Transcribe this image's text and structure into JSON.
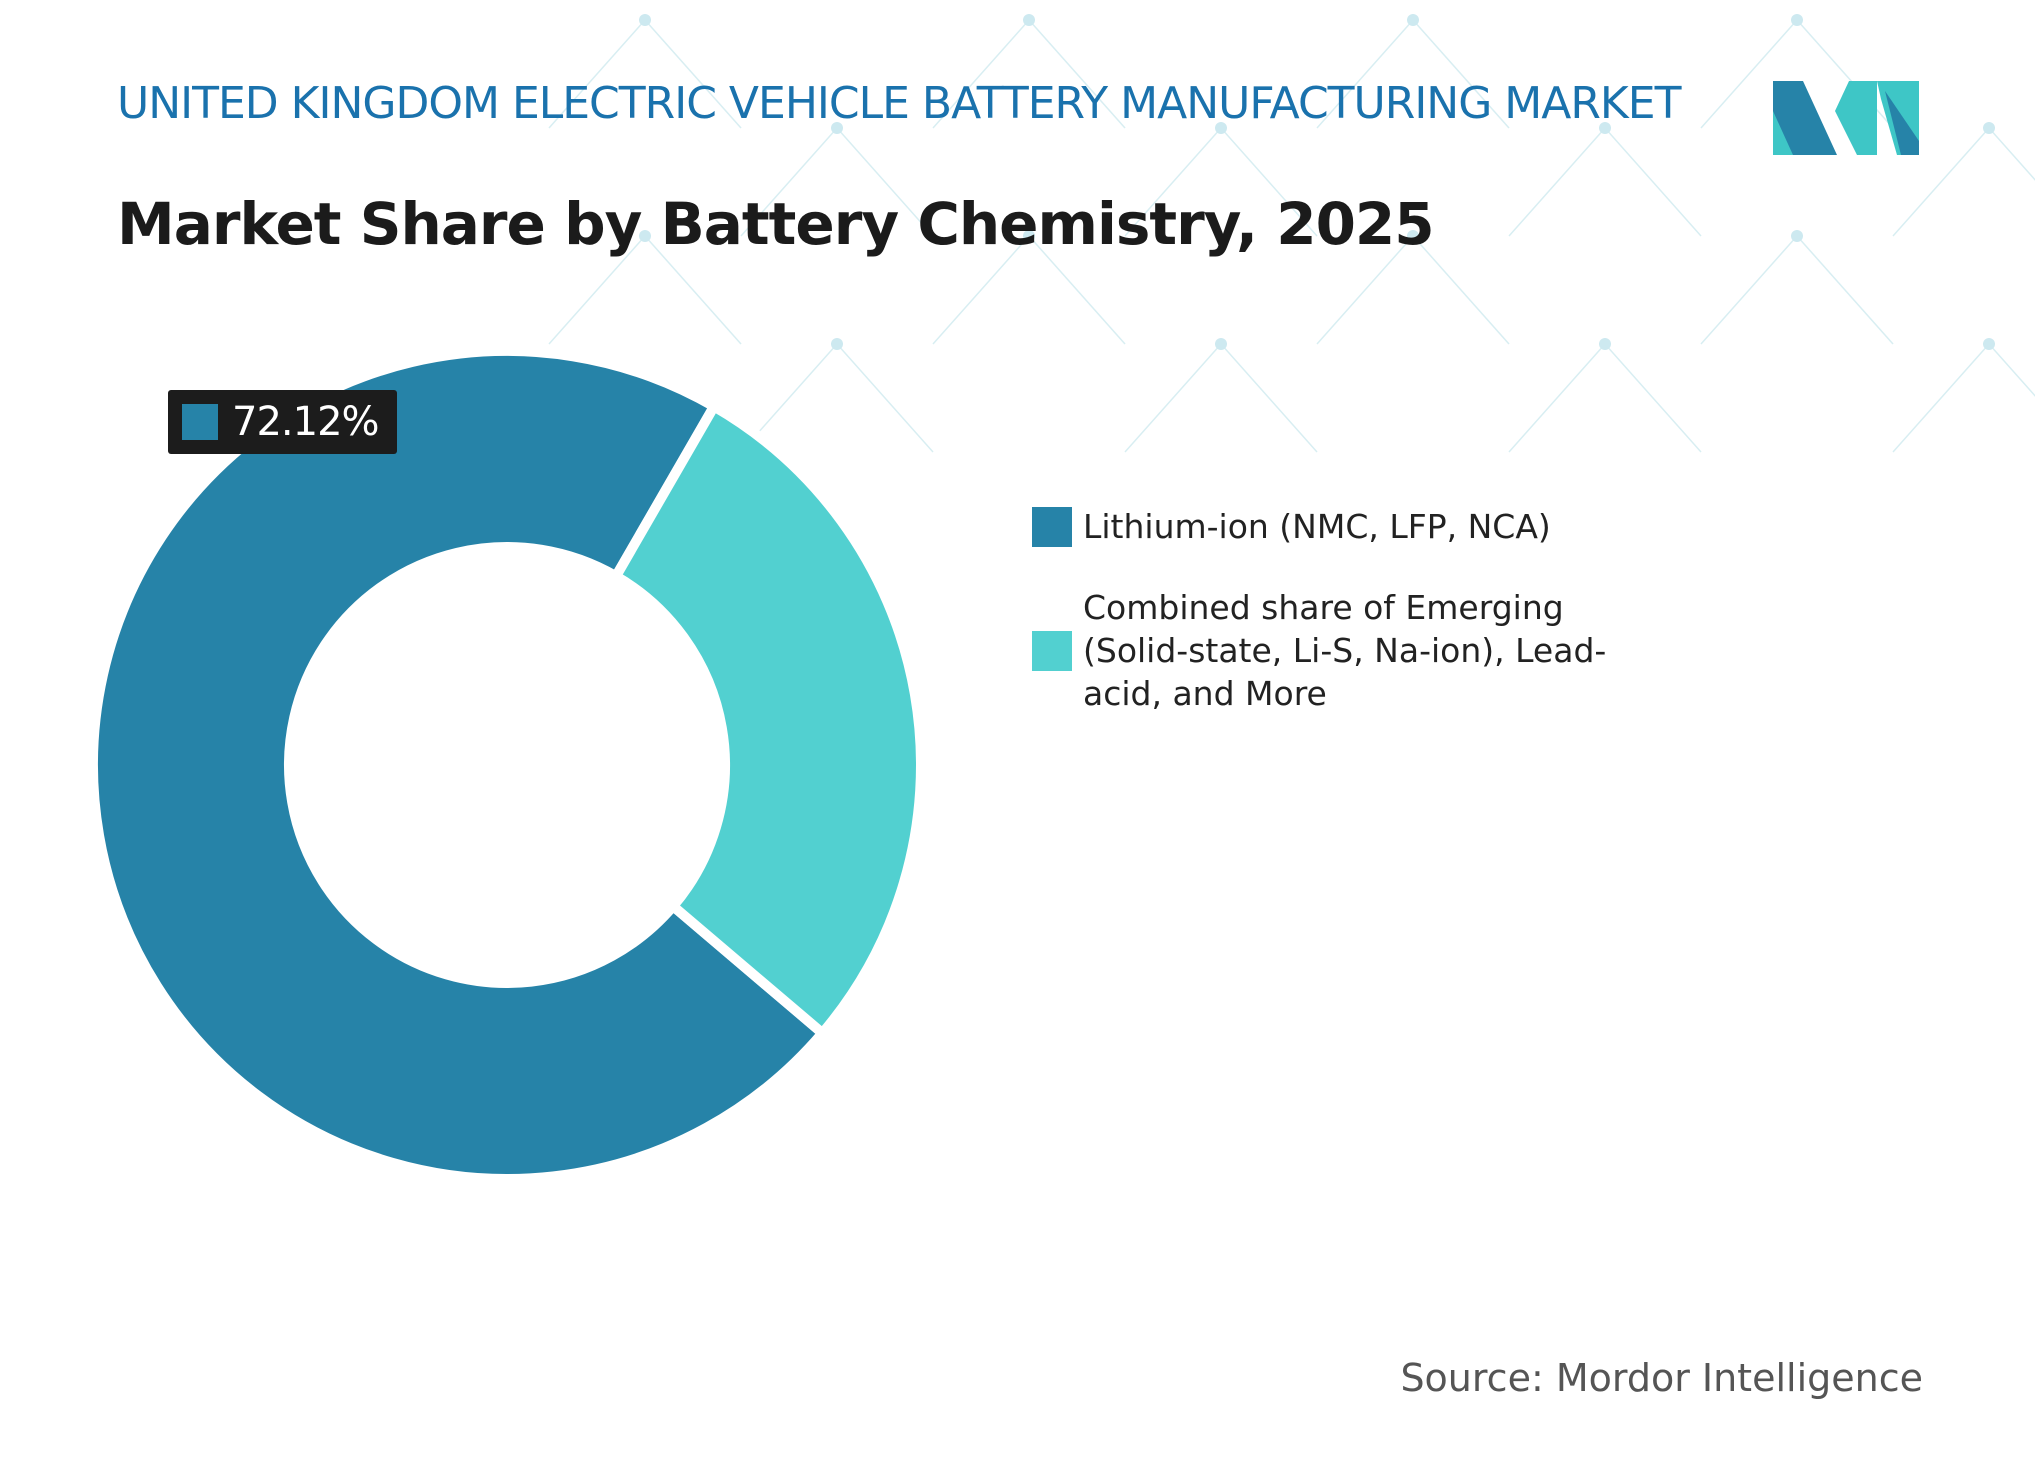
{
  "header": {
    "title": "UNITED KINGDOM ELECTRIC VEHICLE BATTERY MANUFACTURING MARKET",
    "subtitle": "Market Share by Battery Chemistry, 2025"
  },
  "chart_data": {
    "type": "pie",
    "donut": true,
    "title": "Market Share by Battery Chemistry, 2025",
    "categories": [
      "Lithium-ion (NMC, LFP, NCA)",
      "Combined share of Emerging (Solid-state, Li-S, Na-ion), Lead-acid, and More"
    ],
    "values": [
      72.12,
      27.88
    ],
    "colors": [
      "#2683a8",
      "#52d0d0"
    ],
    "data_labels": [
      {
        "category": "Lithium-ion (NMC, LFP, NCA)",
        "text": "72.12%"
      }
    ],
    "legend_placement": "right"
  },
  "footer": {
    "source": "Source: Mordor Intelligence"
  },
  "logo": {
    "text": "MI",
    "colors": [
      "#2683a8",
      "#3ec6c6"
    ]
  }
}
